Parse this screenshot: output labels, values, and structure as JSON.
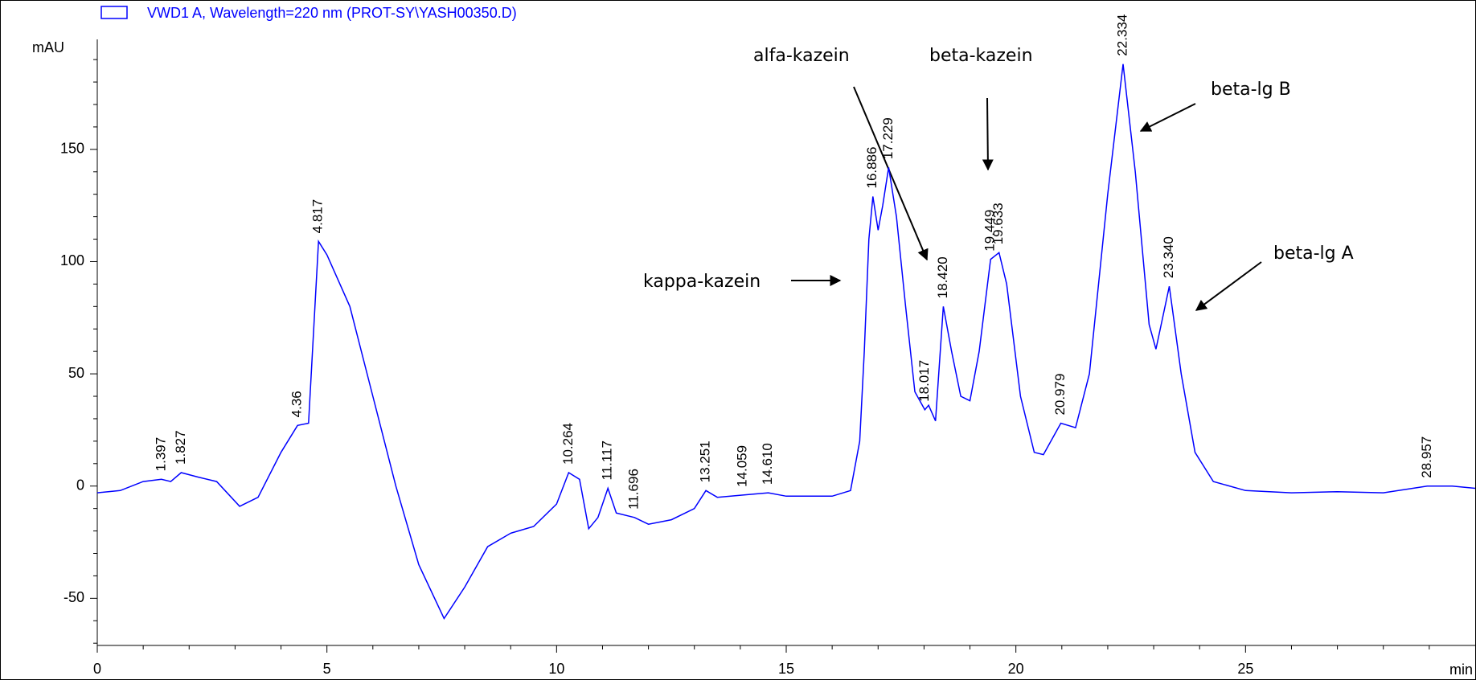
{
  "chart_data": {
    "type": "line",
    "ylabel": "mAU",
    "xlabel": "min",
    "x": [
      0,
      0.5,
      1,
      1.397,
      1.6,
      1.827,
      2.2,
      2.6,
      3.1,
      3.5,
      4.0,
      4.36,
      4.6,
      4.817,
      5.0,
      5.5,
      6,
      6.5,
      7,
      7.55,
      8,
      8.5,
      9,
      9.5,
      10,
      10.264,
      10.5,
      10.7,
      10.9,
      11.117,
      11.3,
      11.696,
      12,
      12.5,
      13,
      13.251,
      13.5,
      14.059,
      14.61,
      15,
      16,
      16.4,
      16.6,
      16.7,
      16.8,
      16.886,
      17.0,
      17.1,
      17.229,
      17.4,
      17.6,
      17.8,
      18.017,
      18.1,
      18.25,
      18.42,
      18.6,
      18.8,
      19.0,
      19.2,
      19.449,
      19.633,
      19.8,
      20.1,
      20.4,
      20.6,
      20.979,
      21.3,
      21.6,
      22,
      22.334,
      22.6,
      22.9,
      23.05,
      23.34,
      23.6,
      23.9,
      24.3,
      25,
      26,
      27,
      28,
      28.957,
      29.5,
      30
    ],
    "series": [
      {
        "name": "VWD1 A, Wavelength=220 nm (PROT-SY\\YASH00350.D)",
        "color": "#0000ff",
        "values": [
          -3,
          -2,
          2,
          3,
          2,
          6,
          4,
          2,
          -9,
          -5,
          15,
          27,
          28,
          109,
          103,
          80,
          40,
          0,
          -35,
          -59,
          -45,
          -27,
          -21,
          -18,
          -8,
          6,
          3,
          -19,
          -14,
          -1,
          -12,
          -14,
          -17,
          -15,
          -10,
          -2,
          -5,
          -4,
          -3,
          -4.5,
          -4.5,
          -2,
          20,
          60,
          110,
          129,
          114,
          125,
          142,
          120,
          80,
          42,
          34,
          36,
          29,
          80,
          60,
          40,
          38,
          60,
          101,
          104,
          90,
          40,
          15,
          14,
          28,
          26,
          50,
          130,
          188,
          140,
          72,
          61,
          89,
          50,
          15,
          2,
          -2,
          -3,
          -2.5,
          -3,
          0,
          0,
          -1
        ]
      }
    ],
    "peaks": {
      "x": [
        1.397,
        1.827,
        4.36,
        4.817,
        10.264,
        11.117,
        11.696,
        13.251,
        14.059,
        {
          "value": 14.61,
          "label": "14.610"
        },
        16.886,
        17.229,
        18.017,
        {
          "value": 18.42,
          "label": "18.420"
        },
        19.449,
        19.633,
        20.979,
        22.334,
        {
          "value": 23.34,
          "label": "23.340"
        },
        28.957
      ],
      "values": [
        3,
        6,
        27,
        109,
        6,
        -1,
        -14,
        -2,
        -4,
        -3,
        129,
        142,
        34,
        80,
        101,
        104,
        28,
        188,
        89,
        0
      ]
    },
    "annotations": [
      "alfa-kazein",
      "beta-kazein",
      "kappa-kazein",
      "beta-lg B",
      "beta-lg A"
    ],
    "xlim": [
      0,
      30
    ],
    "ylim": [
      -71,
      199
    ],
    "xticks": [
      0,
      5,
      10,
      15,
      20,
      25
    ],
    "yticks": [
      -50,
      0,
      50,
      100,
      150
    ],
    "xminorticks": [
      1,
      2,
      3,
      4,
      6,
      7,
      8,
      9,
      11,
      12,
      13,
      14,
      16,
      17,
      18,
      19,
      21,
      22,
      23,
      24,
      26,
      27,
      28,
      29
    ],
    "yminorticks": [
      -70,
      -60,
      -40,
      -30,
      -20,
      -10,
      10,
      20,
      30,
      40,
      60,
      70,
      80,
      90,
      110,
      120,
      130,
      140,
      160,
      170,
      180,
      190
    ]
  }
}
